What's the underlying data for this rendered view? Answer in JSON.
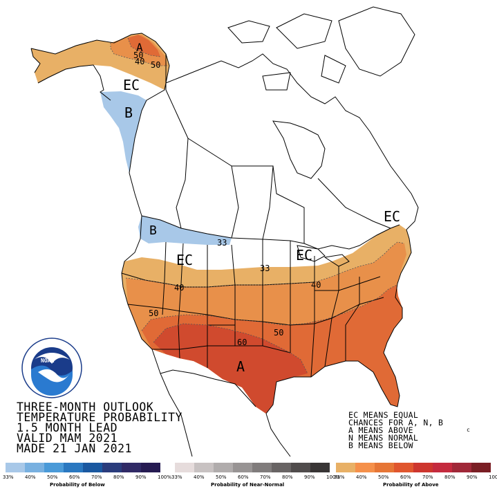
{
  "map": {
    "labels": {
      "a_alaska": "A",
      "c50_alaska": "50",
      "c40_alaska": "40",
      "c50b_alaska": "50",
      "ec_alaska": "EC",
      "b_alaska": "B",
      "b_northwest": "B",
      "c33_north": "33",
      "ec_west": "EC",
      "ec_greatlakes": "EC",
      "ec_northeast": "EC",
      "c33_plains": "33",
      "c40_west": "40",
      "c40_east": "40",
      "c50_southwest": "50",
      "c50_south": "50",
      "c60": "60",
      "a_south": "A",
      "small_c": "c"
    }
  },
  "title_lines": [
    "THREE-MONTH OUTLOOK",
    "TEMPERATURE PROBABILITY",
    "1.5 MONTH LEAD",
    "VALID MAM 2021",
    "MADE 21 JAN 2021"
  ],
  "legend_notes": [
    "EC MEANS EQUAL",
    "CHANCES FOR A, N, B",
    "A MEANS ABOVE",
    "N MEANS NORMAL",
    "B MEANS BELOW"
  ],
  "color_bars": {
    "below": {
      "title": "Probability of Below",
      "colors": [
        "#a8c8e8",
        "#78b0e0",
        "#4a9ad8",
        "#2a78c0",
        "#1a58a0",
        "#2a3c7c",
        "#302a66",
        "#261b52"
      ],
      "ticks": [
        "33%",
        "40%",
        "50%",
        "60%",
        "70%",
        "80%",
        "90%",
        "100%"
      ]
    },
    "normal": {
      "title": "Probability of Near-Normal",
      "colors": [
        "#e6dcdc",
        "#c8c2c2",
        "#b0acac",
        "#989494",
        "#807c7c",
        "#686464",
        "#504c4c",
        "#383535"
      ],
      "ticks": [
        "33%",
        "40%",
        "50%",
        "60%",
        "70%",
        "80%",
        "90%",
        "100%"
      ]
    },
    "above": {
      "title": "Probability of Above",
      "colors": [
        "#e8b066",
        "#f5904a",
        "#e67636",
        "#e0562e",
        "#cd362e",
        "#c42a3e",
        "#a02838",
        "#7a1e24"
      ],
      "ticks": [
        "33%",
        "40%",
        "50%",
        "60%",
        "70%",
        "80%",
        "90%",
        "100%"
      ]
    }
  },
  "colors": {
    "below_33": "#a8c8e8",
    "above_33": "#e8b066",
    "above_40": "#e8904a",
    "above_50": "#e06a36",
    "above_60": "#d04a2e",
    "noaa_blue": "#1a3c8a"
  }
}
